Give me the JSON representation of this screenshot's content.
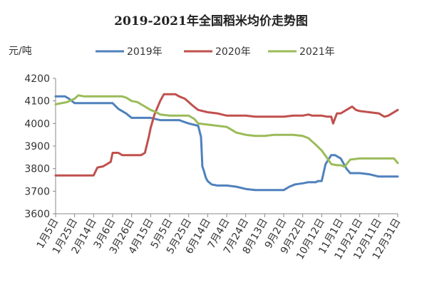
{
  "chart_data": {
    "type": "line",
    "title": "2019-2021年全国稻米均价走势图",
    "ylabel": "元/吨",
    "xlabel": "",
    "ylim": [
      3600,
      4200
    ],
    "yticks": [
      3600,
      3700,
      3800,
      3900,
      4000,
      4100,
      4200
    ],
    "grid": false,
    "legend": "top",
    "categories": [
      "1月5日",
      "1月25日",
      "2月14日",
      "3月6日",
      "3月26日",
      "4月15日",
      "5月5日",
      "5月25日",
      "6月14日",
      "7月4日",
      "7月24日",
      "8月13日",
      "9月2日",
      "9月22日",
      "10月12日",
      "11月1日",
      "11月21日",
      "12月11日",
      "12月31日"
    ],
    "series": [
      {
        "name": "2019年",
        "color": "#4f81bd",
        "x": [
          0,
          0.5,
          0.7,
          1.0,
          1.5,
          2.0,
          2.5,
          3.0,
          3.3,
          3.7,
          4.0,
          4.5,
          5.0,
          5.5,
          6.0,
          6.5,
          7.0,
          7.5,
          7.65,
          7.72,
          7.8,
          7.9,
          8.0,
          8.2,
          8.5,
          9.0,
          9.5,
          10.0,
          10.5,
          11.0,
          11.5,
          12.0,
          12.3,
          12.6,
          13.0,
          13.3,
          13.5,
          13.7,
          13.8,
          14.0,
          14.2,
          14.5,
          14.7,
          14.8,
          15.0,
          15.3,
          15.5,
          16.0,
          16.5,
          17.0,
          17.5,
          18.0
        ],
        "values": [
          4120,
          4120,
          4110,
          4090,
          4090,
          4090,
          4090,
          4090,
          4065,
          4045,
          4025,
          4025,
          4025,
          4015,
          4015,
          4015,
          4000,
          3990,
          3940,
          3810,
          3790,
          3760,
          3745,
          3730,
          3725,
          3725,
          3720,
          3710,
          3705,
          3705,
          3705,
          3705,
          3720,
          3730,
          3735,
          3740,
          3740,
          3740,
          3745,
          3745,
          3820,
          3860,
          3860,
          3855,
          3845,
          3800,
          3780,
          3780,
          3775,
          3765,
          3765,
          3765
        ]
      },
      {
        "name": "2020年",
        "color": "#c0504d",
        "x": [
          0,
          0.5,
          1.0,
          1.5,
          2.0,
          2.2,
          2.5,
          2.9,
          3.0,
          3.3,
          3.5,
          4.0,
          4.5,
          4.7,
          4.9,
          5.0,
          5.2,
          5.5,
          5.7,
          6.0,
          6.3,
          6.5,
          6.8,
          7.0,
          7.2,
          7.5,
          8.0,
          8.5,
          9.0,
          9.5,
          10.0,
          10.5,
          11.0,
          11.5,
          12.0,
          12.5,
          13.0,
          13.3,
          13.5,
          14.0,
          14.3,
          14.5,
          14.6,
          14.8,
          15.0,
          15.3,
          15.6,
          15.8,
          16.0,
          16.5,
          17.0,
          17.3,
          17.5,
          18.0
        ],
        "values": [
          3770,
          3770,
          3770,
          3770,
          3770,
          3805,
          3810,
          3830,
          3870,
          3870,
          3860,
          3860,
          3860,
          3870,
          3940,
          3980,
          4040,
          4100,
          4130,
          4130,
          4130,
          4120,
          4110,
          4095,
          4080,
          4060,
          4050,
          4045,
          4035,
          4035,
          4035,
          4030,
          4030,
          4030,
          4030,
          4035,
          4035,
          4040,
          4035,
          4035,
          4030,
          4030,
          4000,
          4045,
          4045,
          4060,
          4075,
          4060,
          4055,
          4050,
          4045,
          4030,
          4035,
          4060
        ]
      },
      {
        "name": "2021年",
        "color": "#9bbb59",
        "x": [
          0,
          0.3,
          0.6,
          1.0,
          1.2,
          1.5,
          2.0,
          2.5,
          3.0,
          3.5,
          3.7,
          4.0,
          4.3,
          4.6,
          5.0,
          5.3,
          5.5,
          6.0,
          6.5,
          7.0,
          7.3,
          7.5,
          8.0,
          8.5,
          9.0,
          9.3,
          9.5,
          10.0,
          10.5,
          11.0,
          11.5,
          12.0,
          12.5,
          13.0,
          13.3,
          13.5,
          13.7,
          14.0,
          14.3,
          14.5,
          14.8,
          15.0,
          15.2,
          15.5,
          16.0,
          16.5,
          17.0,
          17.5,
          17.8,
          18.0
        ],
        "values": [
          4085,
          4090,
          4095,
          4110,
          4125,
          4120,
          4120,
          4120,
          4120,
          4120,
          4115,
          4100,
          4095,
          4080,
          4060,
          4050,
          4040,
          4035,
          4035,
          4035,
          4020,
          4000,
          3995,
          3990,
          3985,
          3970,
          3960,
          3950,
          3945,
          3945,
          3950,
          3950,
          3950,
          3945,
          3935,
          3920,
          3905,
          3880,
          3845,
          3820,
          3815,
          3815,
          3808,
          3840,
          3845,
          3845,
          3845,
          3845,
          3845,
          3825
        ]
      }
    ]
  }
}
